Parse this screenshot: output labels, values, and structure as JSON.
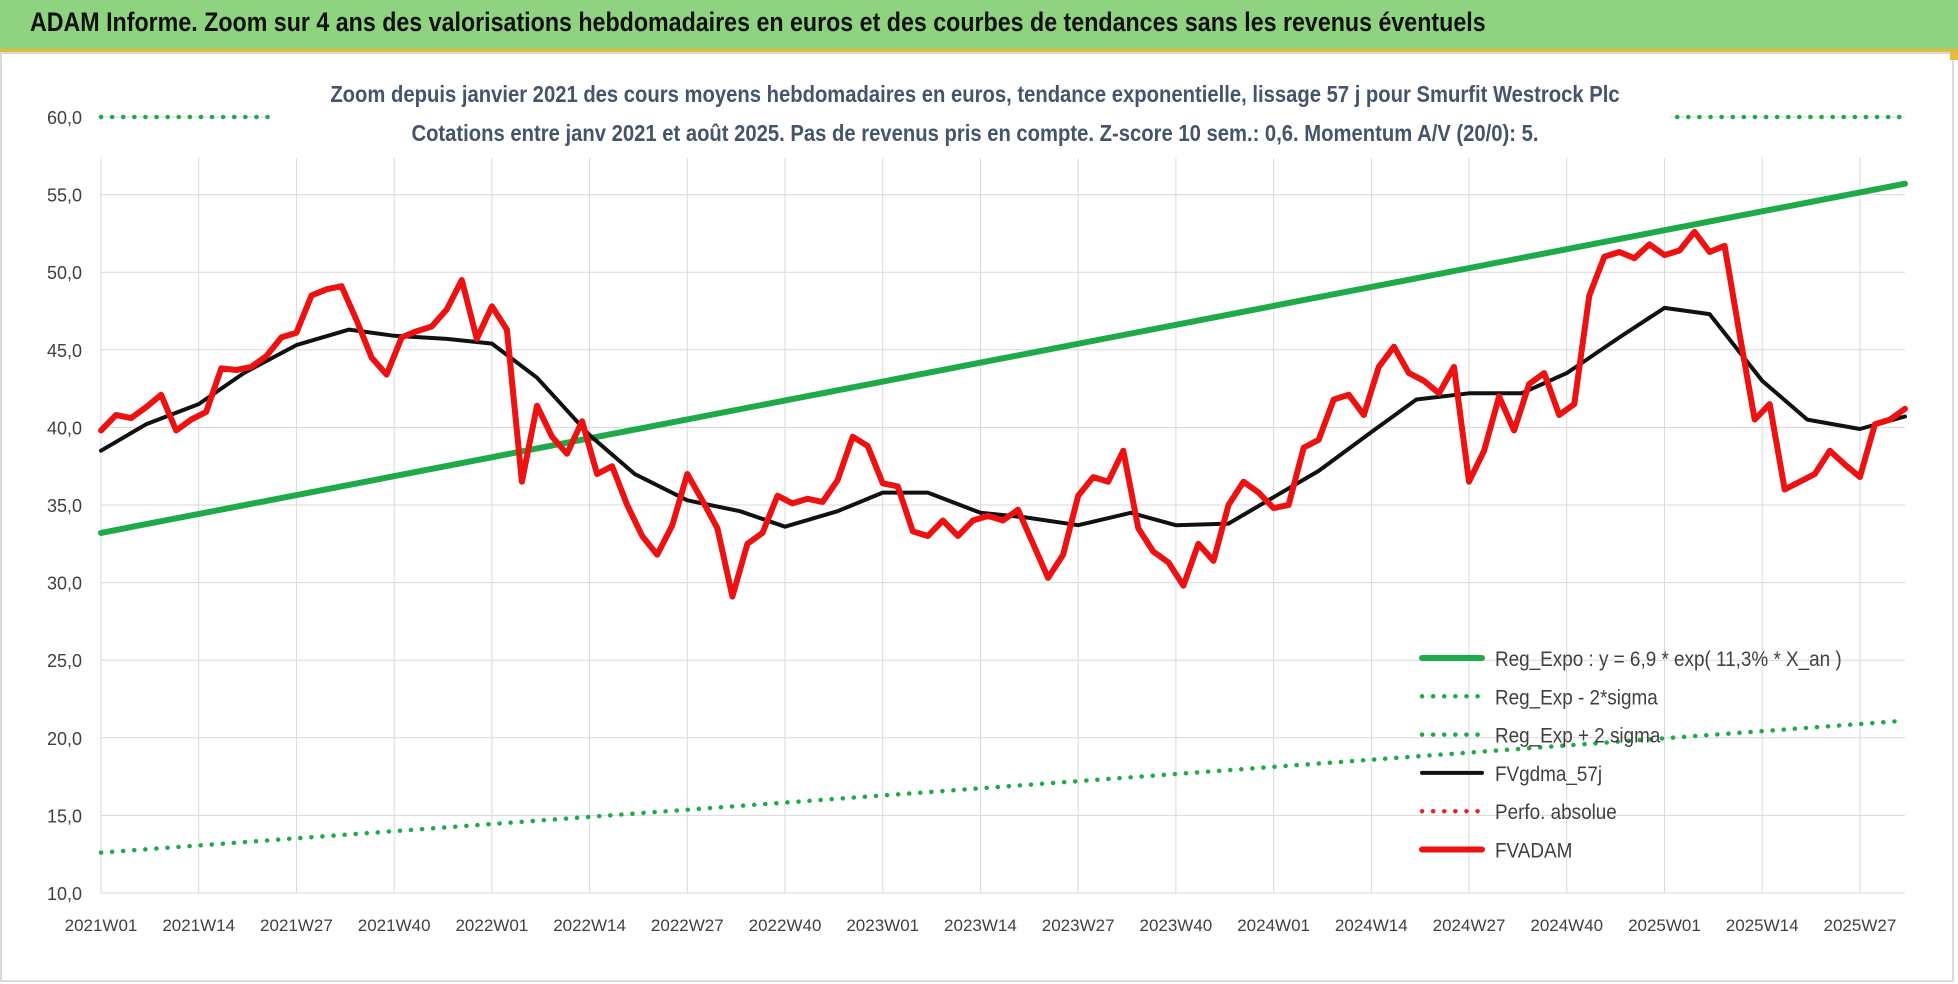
{
  "banner": {
    "title": "ADAM Informe. Zoom sur 4 ans des valorisations hebdomadaires en euros et des courbes de tendances sans les revenus éventuels"
  },
  "colors": {
    "banner_bg": "#8fd27f",
    "trend_green": "#1faa4a",
    "fv_black": "#111111",
    "fvadam_red": "#ee1111",
    "perfo_red": "#e8222b",
    "subtitle": "#44546a",
    "grid": "#d9d9d9"
  },
  "chart_data": {
    "type": "line",
    "title": "Zoom depuis janvier 2021 des cours moyens hebdomadaires en euros, tendance exponentielle, lissage 57 j pour Smurfit Westrock Plc",
    "subtitle": "Cotations entre janv 2021 et août 2025.  Pas de revenus pris en compte. Z-score 10 sem.: 0,6. Momentum A/V (20/0): 5.",
    "ylim": [
      10,
      60
    ],
    "y_ticks": [
      "10,0",
      "15,0",
      "20,0",
      "25,0",
      "30,0",
      "35,0",
      "40,0",
      "45,0",
      "50,0",
      "55,0",
      "60,0"
    ],
    "x_tick_labels": [
      "2021W01",
      "2021W14",
      "2021W27",
      "2021W40",
      "2022W01",
      "2022W14",
      "2022W27",
      "2022W40",
      "2023W01",
      "2023W14",
      "2023W27",
      "2023W40",
      "2024W01",
      "2024W14",
      "2024W27",
      "2024W40",
      "2025W01",
      "2025W14",
      "2025W27"
    ],
    "week_count": 241,
    "legend_position": "bottom-right",
    "grid": true,
    "series": [
      {
        "name": "Reg_Expo : y = 6,9 * exp( 11,3% *  X_an )",
        "style": "solid-thick",
        "color": "#1faa4a",
        "x": [
          "2021W01",
          "2025W33"
        ],
        "values": [
          33.2,
          55.7
        ]
      },
      {
        "name": "Reg_Exp - 2*sigma",
        "style": "dotted",
        "color": "#1faa4a",
        "x": [
          "2021W01",
          "2025W33"
        ],
        "values": [
          12.6,
          21.1
        ]
      },
      {
        "name": "Reg_Exp + 2 sigma",
        "style": "dotted",
        "color": "#1faa4a",
        "x": [
          "2021W01",
          "2025W33"
        ],
        "values": [
          60.0,
          60.0
        ]
      },
      {
        "name": "FVgdma_57j",
        "style": "solid",
        "color": "#111111",
        "x": [
          "2021W01",
          "2021W07",
          "2021W14",
          "2021W20",
          "2021W27",
          "2021W34",
          "2021W40",
          "2021W47",
          "2022W01",
          "2022W07",
          "2022W14",
          "2022W20",
          "2022W27",
          "2022W34",
          "2022W40",
          "2022W47",
          "2023W01",
          "2023W07",
          "2023W14",
          "2023W20",
          "2023W27",
          "2023W34",
          "2023W40",
          "2023W47",
          "2024W01",
          "2024W07",
          "2024W14",
          "2024W20",
          "2024W27",
          "2024W34",
          "2024W40",
          "2024W47",
          "2025W01",
          "2025W07",
          "2025W14",
          "2025W20",
          "2025W27",
          "2025W33"
        ],
        "values": [
          38.5,
          40.2,
          41.5,
          43.5,
          45.3,
          46.3,
          45.9,
          45.7,
          45.4,
          43.2,
          39.5,
          37.0,
          35.3,
          34.6,
          33.6,
          34.6,
          35.8,
          35.8,
          34.5,
          34.2,
          33.7,
          34.5,
          33.7,
          33.8,
          35.5,
          37.2,
          39.7,
          41.8,
          42.2,
          42.2,
          43.5,
          45.8,
          47.7,
          47.3,
          43.0,
          40.5,
          39.9,
          40.7
        ]
      },
      {
        "name": "Perfo. absolue",
        "style": "dotted",
        "color": "#e8222b",
        "x": [],
        "values": []
      },
      {
        "name": "FVADAM",
        "style": "solid-thick",
        "color": "#ee1111",
        "x": [
          "2021W01",
          "2021W03",
          "2021W05",
          "2021W07",
          "2021W09",
          "2021W11",
          "2021W13",
          "2021W15",
          "2021W17",
          "2021W19",
          "2021W21",
          "2021W23",
          "2021W25",
          "2021W27",
          "2021W29",
          "2021W31",
          "2021W33",
          "2021W35",
          "2021W37",
          "2021W39",
          "2021W41",
          "2021W43",
          "2021W45",
          "2021W47",
          "2021W49",
          "2021W51",
          "2022W01",
          "2022W03",
          "2022W05",
          "2022W07",
          "2022W09",
          "2022W11",
          "2022W13",
          "2022W15",
          "2022W17",
          "2022W19",
          "2022W21",
          "2022W23",
          "2022W25",
          "2022W27",
          "2022W29",
          "2022W31",
          "2022W33",
          "2022W35",
          "2022W37",
          "2022W39",
          "2022W41",
          "2022W43",
          "2022W45",
          "2022W47",
          "2022W49",
          "2022W51",
          "2023W01",
          "2023W03",
          "2023W05",
          "2023W07",
          "2023W09",
          "2023W11",
          "2023W13",
          "2023W15",
          "2023W17",
          "2023W19",
          "2023W21",
          "2023W23",
          "2023W25",
          "2023W27",
          "2023W29",
          "2023W31",
          "2023W33",
          "2023W35",
          "2023W37",
          "2023W39",
          "2023W41",
          "2023W43",
          "2023W45",
          "2023W47",
          "2023W49",
          "2023W51",
          "2024W01",
          "2024W03",
          "2024W05",
          "2024W07",
          "2024W09",
          "2024W11",
          "2024W13",
          "2024W15",
          "2024W17",
          "2024W19",
          "2024W21",
          "2024W23",
          "2024W25",
          "2024W27",
          "2024W29",
          "2024W31",
          "2024W33",
          "2024W35",
          "2024W37",
          "2024W39",
          "2024W41",
          "2024W43",
          "2024W45",
          "2024W47",
          "2024W49",
          "2024W51",
          "2025W01",
          "2025W03",
          "2025W05",
          "2025W07",
          "2025W09",
          "2025W11",
          "2025W13",
          "2025W15",
          "2025W17",
          "2025W19",
          "2025W21",
          "2025W23",
          "2025W25",
          "2025W27",
          "2025W29",
          "2025W31",
          "2025W33"
        ],
        "values": [
          39.8,
          40.8,
          40.6,
          41.3,
          42.1,
          39.8,
          40.5,
          41.0,
          43.8,
          43.7,
          43.9,
          44.6,
          45.8,
          46.1,
          48.5,
          48.9,
          49.1,
          46.9,
          44.5,
          43.4,
          45.8,
          46.2,
          46.5,
          47.6,
          49.5,
          45.7,
          47.8,
          46.3,
          36.5,
          41.4,
          39.4,
          38.3,
          40.4,
          37.0,
          37.5,
          35.0,
          33.0,
          31.8,
          33.7,
          37.0,
          35.3,
          33.5,
          29.1,
          32.5,
          33.2,
          35.6,
          35.1,
          35.4,
          35.2,
          36.6,
          39.4,
          38.8,
          36.4,
          36.2,
          33.3,
          33.0,
          34.0,
          33.0,
          34.0,
          34.3,
          34.0,
          34.7,
          32.5,
          30.3,
          31.8,
          35.6,
          36.8,
          36.5,
          38.5,
          33.5,
          32.0,
          31.3,
          29.8,
          32.5,
          31.4,
          35.0,
          36.5,
          35.8,
          34.8,
          35.0,
          38.7,
          39.2,
          41.8,
          42.1,
          40.8,
          43.9,
          45.2,
          43.5,
          43.0,
          42.2,
          43.9,
          36.5,
          38.5,
          42.0,
          39.8,
          42.8,
          43.5,
          40.8,
          41.5,
          48.5,
          51.0,
          51.3,
          50.9,
          51.8,
          51.1,
          51.4,
          52.6,
          51.3,
          51.7,
          46.0,
          40.5,
          41.5,
          36.0,
          36.5,
          37.0,
          38.5,
          37.6,
          36.8,
          40.2,
          40.5,
          41.2
        ]
      }
    ]
  }
}
